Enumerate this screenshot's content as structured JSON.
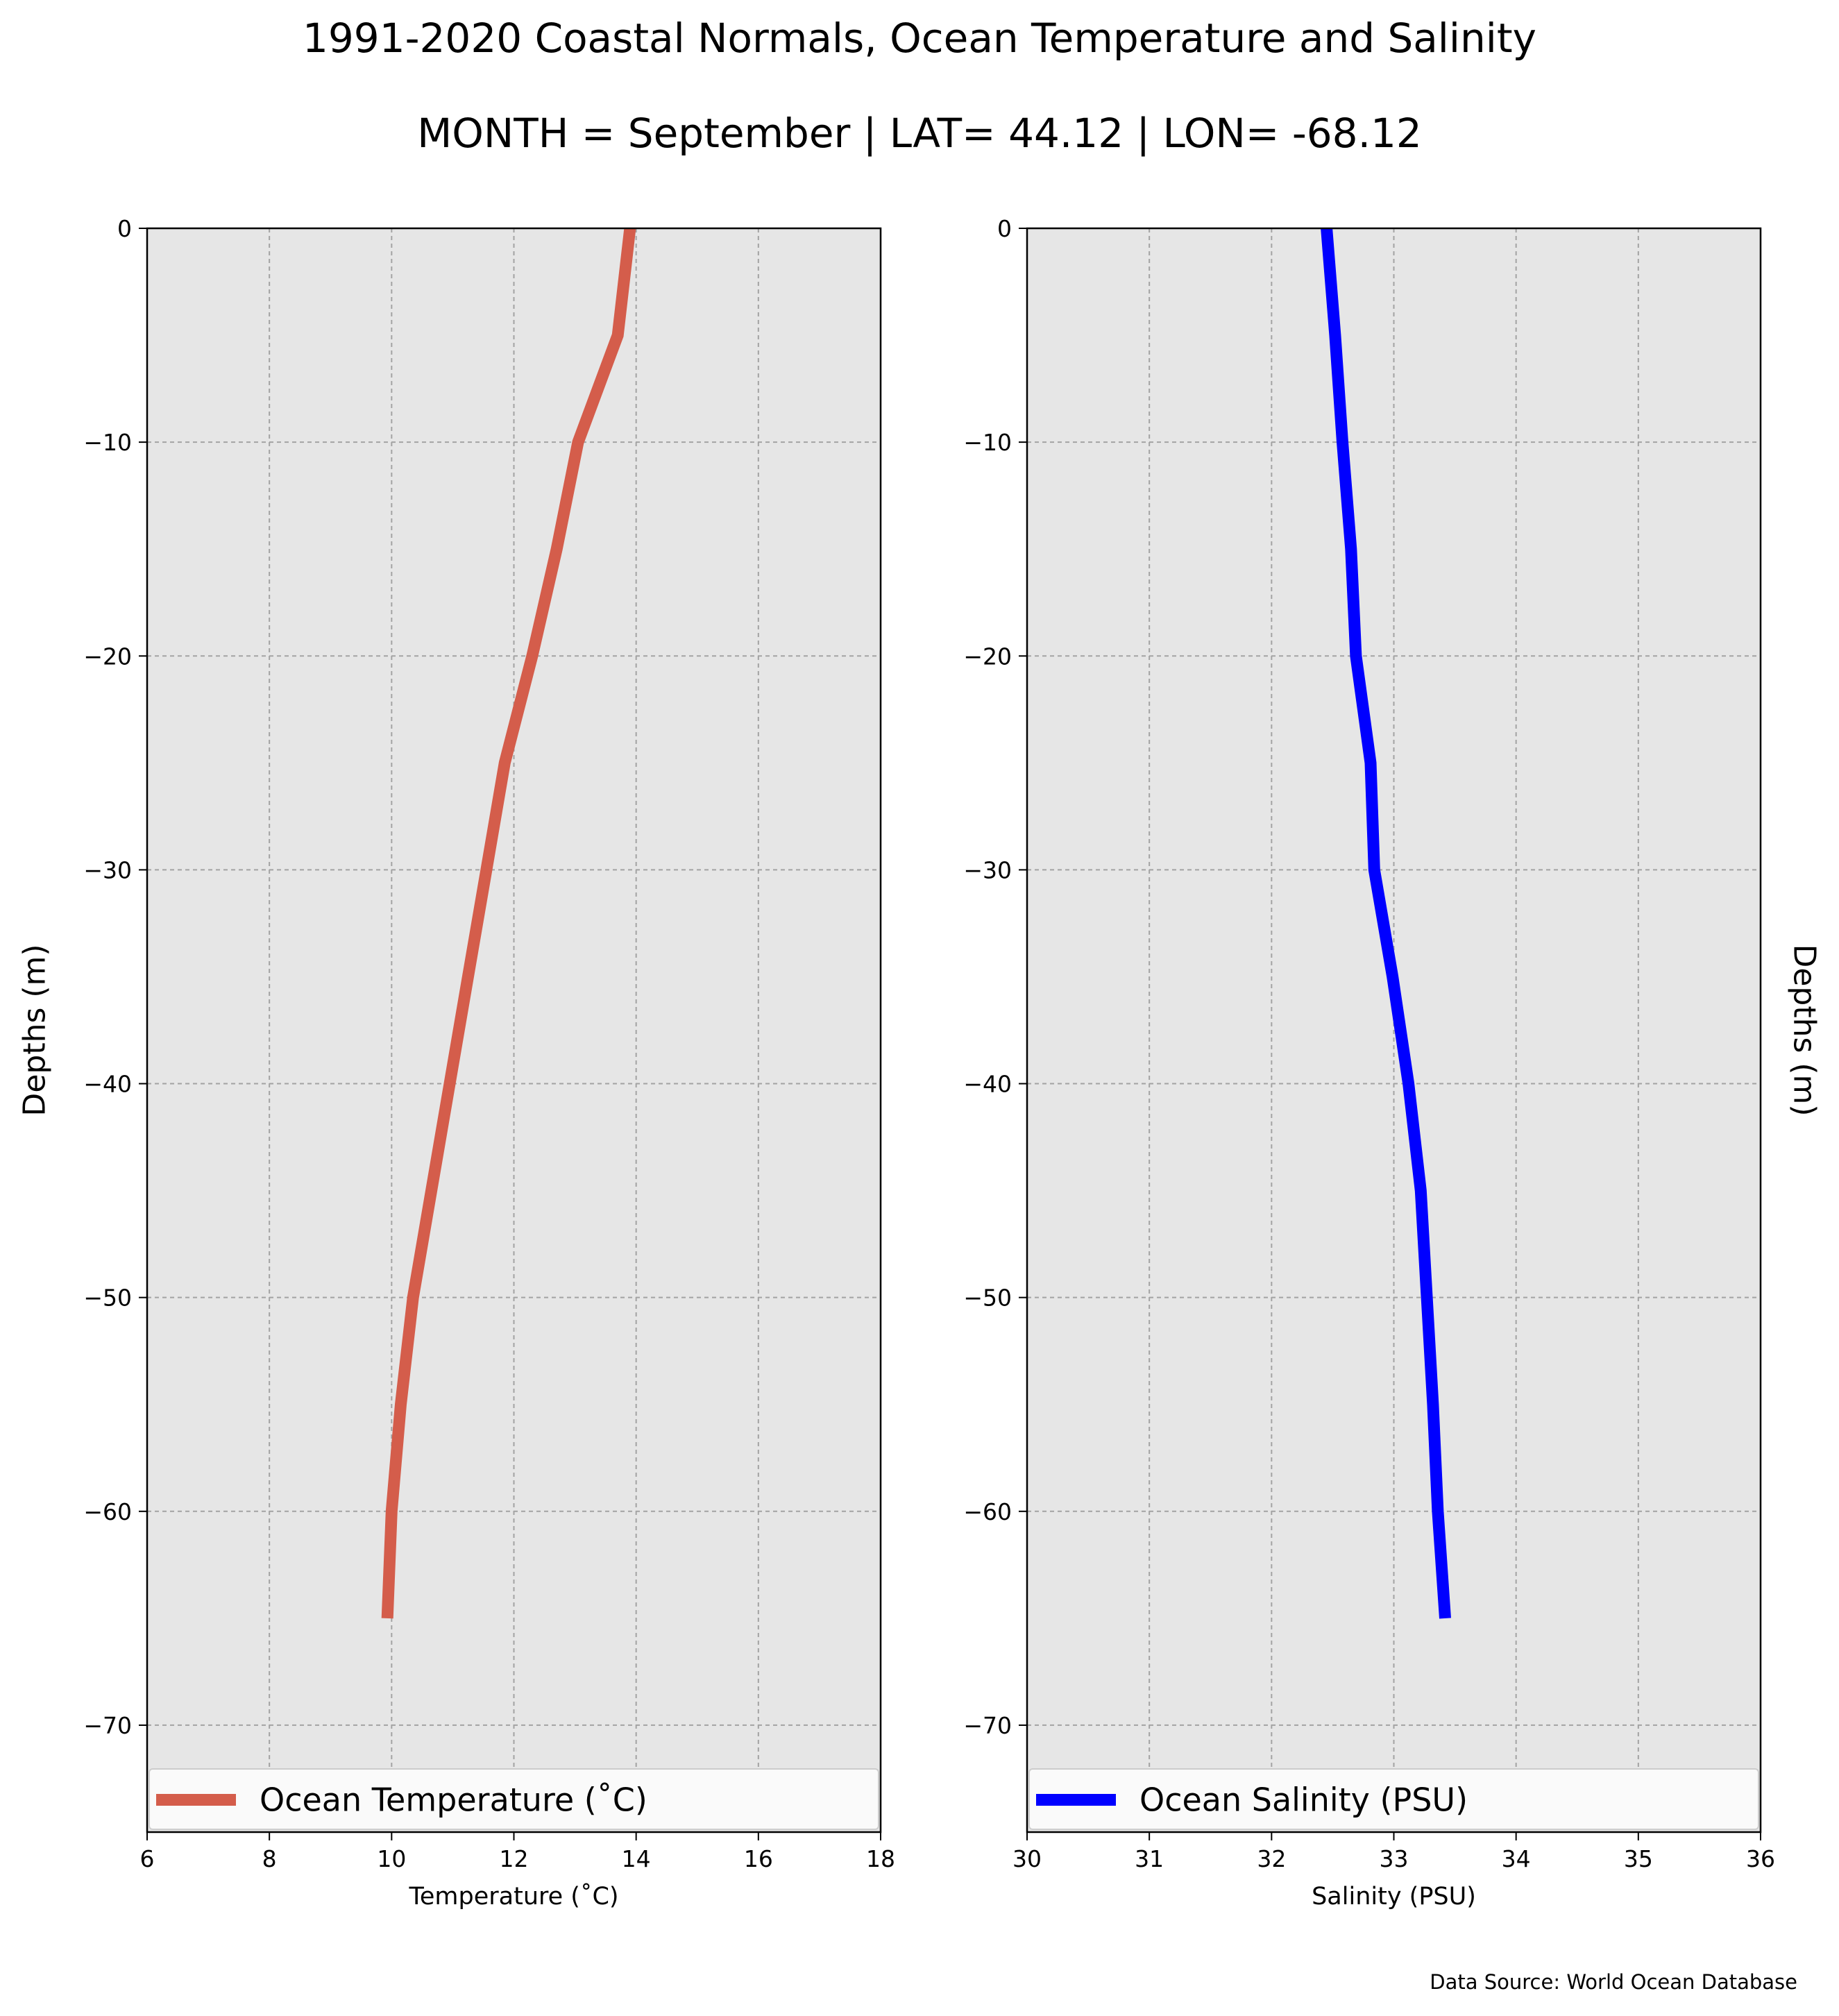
{
  "title": "1991-2020 Coastal Normals, Ocean Temperature and Salinity",
  "subtitle": "MONTH = September | LAT= 44.12 | LON= -68.12",
  "source": "Data Source: World Ocean Database",
  "colors": {
    "plot_background": "#e6e6e6",
    "grid": "#a3a3a3",
    "temperature_line": "#d45d4b",
    "salinity_line": "#0000ff"
  },
  "chart_data": [
    {
      "type": "line",
      "name": "temperature",
      "xlabel": "Temperature ($^\\circ$C)",
      "xlabel_display": "Temperature (˚C)",
      "ylabel": "Depths (m)",
      "xlim": [
        6,
        18
      ],
      "ylim": [
        -75,
        0
      ],
      "xticks": [
        6,
        8,
        10,
        12,
        14,
        16,
        18
      ],
      "yticks": [
        0,
        -10,
        -20,
        -30,
        -40,
        -50,
        -60,
        -70
      ],
      "ytick_labels": [
        "0",
        "−10",
        "−20",
        "−30",
        "−40",
        "−50",
        "−60",
        "−70"
      ],
      "grid": true,
      "legend_placement": "lower-center",
      "series": [
        {
          "name": "Ocean Temperature (˚C)",
          "x": [
            13.9,
            13.7,
            13.05,
            12.7,
            12.3,
            11.85,
            11.55,
            11.25,
            10.95,
            10.65,
            10.35,
            10.15,
            10.0,
            9.93
          ],
          "y": [
            0,
            -5,
            -10,
            -15,
            -20,
            -25,
            -30,
            -35,
            -40,
            -45,
            -50,
            -55,
            -60,
            -65
          ]
        }
      ]
    },
    {
      "type": "line",
      "name": "salinity",
      "xlabel": "Salinity (PSU)",
      "ylabel": "Depths (m)",
      "xlim": [
        30,
        36
      ],
      "ylim": [
        -75,
        0
      ],
      "xticks": [
        30,
        31,
        32,
        33,
        34,
        35,
        36
      ],
      "yticks": [
        0,
        -10,
        -20,
        -30,
        -40,
        -50,
        -60,
        -70
      ],
      "ytick_labels": [
        "0",
        "−10",
        "−20",
        "−30",
        "−40",
        "−50",
        "−60",
        "−70"
      ],
      "grid": true,
      "legend_placement": "lower-center",
      "series": [
        {
          "name": "Ocean Salinity (PSU)",
          "x": [
            32.45,
            32.52,
            32.58,
            32.65,
            32.69,
            32.81,
            32.84,
            32.99,
            33.12,
            33.22,
            33.27,
            33.32,
            33.36,
            33.42
          ],
          "y": [
            0,
            -5,
            -10,
            -15,
            -20,
            -25,
            -30,
            -35,
            -40,
            -45,
            -50,
            -55,
            -60,
            -65
          ]
        }
      ]
    }
  ]
}
